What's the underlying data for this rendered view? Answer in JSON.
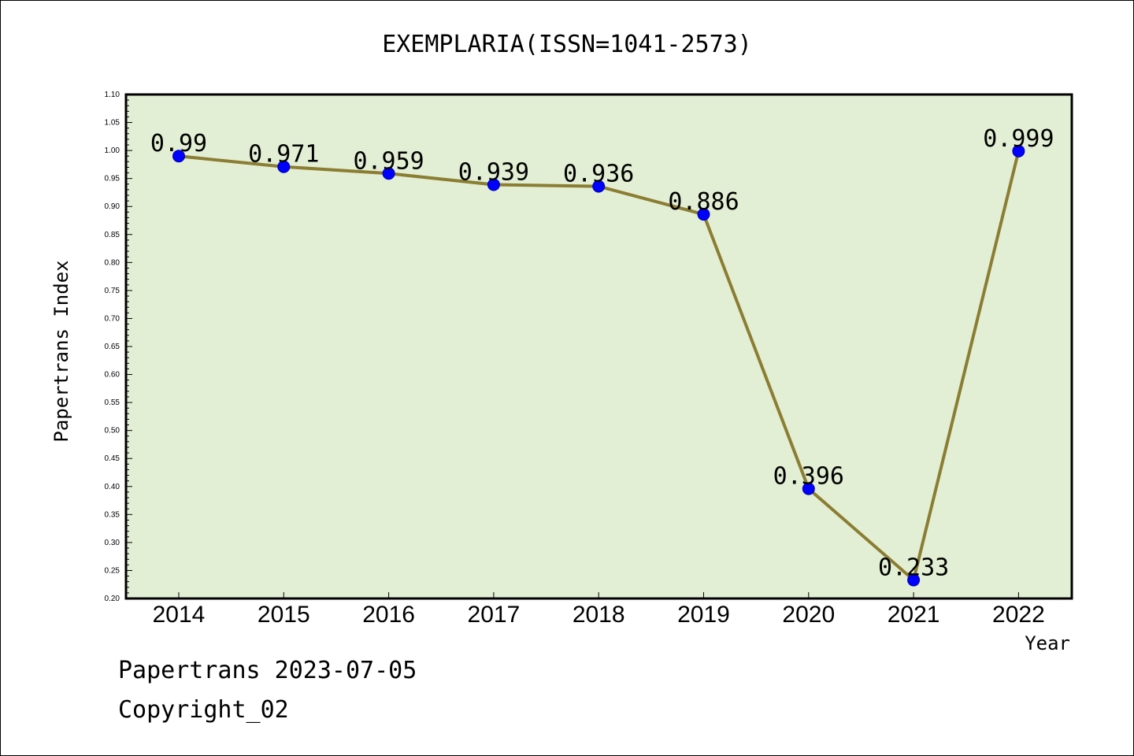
{
  "chart_data": {
    "type": "line",
    "title": "EXEMPLARIA(ISSN=1041-2573)",
    "xlabel": "Year",
    "ylabel": "Papertrans Index",
    "x": [
      "2014",
      "2015",
      "2016",
      "2017",
      "2018",
      "2019",
      "2020",
      "2021",
      "2022"
    ],
    "series": [
      {
        "values": [
          0.99,
          0.971,
          0.959,
          0.939,
          0.936,
          0.886,
          0.396,
          0.233,
          0.999
        ],
        "labels": [
          "0.99",
          "0.971",
          "0.959",
          "0.939",
          "0.936",
          "0.886",
          "0.396",
          "0.233",
          "0.999"
        ]
      }
    ],
    "ylim": [
      0.2,
      1.1
    ],
    "yticks": [
      "0.20",
      "0.25",
      "0.30",
      "0.35",
      "0.40",
      "0.45",
      "0.50",
      "0.55",
      "0.60",
      "0.65",
      "0.70",
      "0.75",
      "0.80",
      "0.85",
      "0.90",
      "0.95",
      "1.00",
      "1.05",
      "1.10"
    ],
    "grid": false,
    "colors": {
      "plot_background": "#e2efd4",
      "line": "#8b7d32",
      "marker": "#0000ff"
    }
  },
  "footer": {
    "line1": "Papertrans 2023-07-05",
    "line2": "Copyright_02"
  }
}
